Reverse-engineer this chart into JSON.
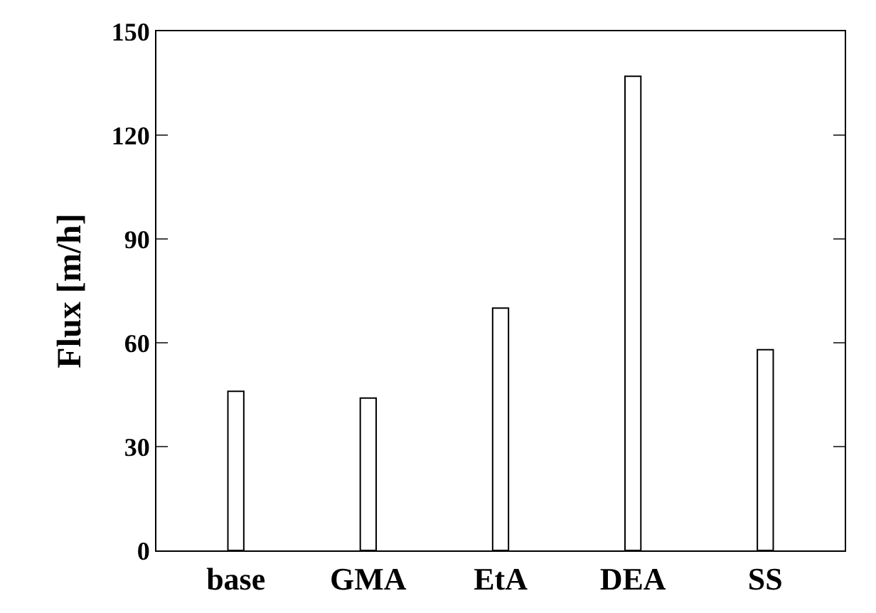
{
  "chart_data": {
    "type": "bar",
    "ylabel": "Flux [m/h]",
    "categories": [
      "base",
      "GMA",
      "EtA",
      "DEA",
      "SS"
    ],
    "series": [
      {
        "color": "#ffffff",
        "values": [
          46,
          44,
          70,
          137,
          58
        ]
      }
    ],
    "ylim": [
      0,
      150
    ],
    "yticks": [
      0,
      30,
      60,
      90,
      120,
      150
    ]
  }
}
